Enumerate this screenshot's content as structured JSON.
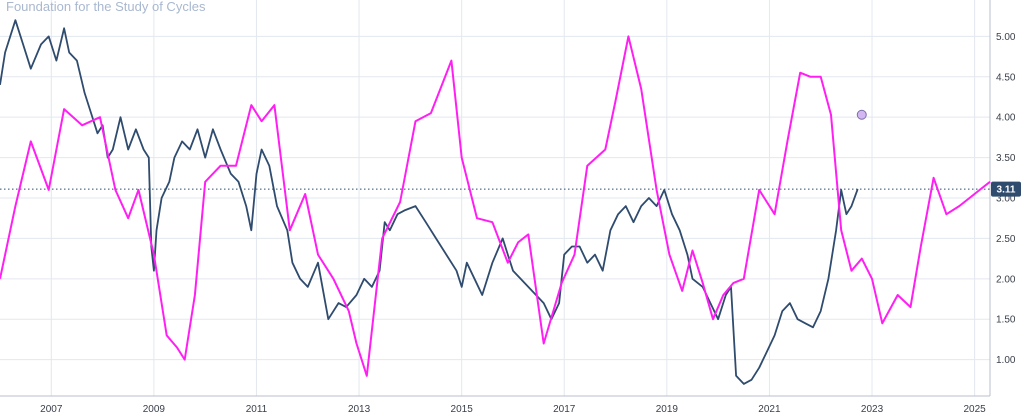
{
  "watermark": "Foundation for the Study of Cycles",
  "colors": {
    "price": "#2f4b6e",
    "cycle": "#ff1ff2",
    "grid": "#e3e8ef",
    "axis_text": "#3a3f4a",
    "tag_bg": "#2f4b6e",
    "last_line": "#2f4b6e",
    "marker_fill": "#d3b6f2",
    "marker_stroke": "#7a6fa8"
  },
  "chart_data": {
    "type": "line",
    "title": "",
    "xlabel": "",
    "ylabel": "",
    "xlim": [
      2006.0,
      2025.3
    ],
    "ylim": [
      0.55,
      5.45
    ],
    "grid": true,
    "y_axis_side": "right",
    "x_ticks": [
      "2007",
      "2009",
      "2011",
      "2013",
      "2015",
      "2017",
      "2019",
      "2021",
      "2023",
      "2025"
    ],
    "y_ticks": [
      "5.00",
      "4.50",
      "4.00",
      "3.50",
      "3.00",
      "2.50",
      "2.00",
      "1.50",
      "1.00"
    ],
    "last_value": 3.11,
    "last_value_label": "3.11",
    "projection_marker": {
      "x": 2022.8,
      "y": 4.03
    },
    "series": [
      {
        "key": "price",
        "x": [
          2006.0,
          2006.1,
          2006.3,
          2006.45,
          2006.6,
          2006.8,
          2006.95,
          2007.1,
          2007.25,
          2007.35,
          2007.5,
          2007.65,
          2007.75,
          2007.9,
          2008.0,
          2008.1,
          2008.2,
          2008.35,
          2008.5,
          2008.65,
          2008.8,
          2008.9,
          2008.95,
          2009.0,
          2009.05,
          2009.15,
          2009.3,
          2009.4,
          2009.55,
          2009.7,
          2009.85,
          2010.0,
          2010.15,
          2010.3,
          2010.5,
          2010.65,
          2010.8,
          2010.9,
          2011.0,
          2011.1,
          2011.25,
          2011.4,
          2011.6,
          2011.7,
          2011.85,
          2012.0,
          2012.2,
          2012.4,
          2012.6,
          2012.75,
          2012.95,
          2013.1,
          2013.25,
          2013.4,
          2013.5,
          2013.6,
          2013.75,
          2013.9,
          2014.1,
          2014.3,
          2014.5,
          2014.7,
          2014.9,
          2015.0,
          2015.1,
          2015.25,
          2015.4,
          2015.6,
          2015.8,
          2015.9,
          2016.0,
          2016.15,
          2016.3,
          2016.45,
          2016.6,
          2016.75,
          2016.9,
          2017.0,
          2017.15,
          2017.3,
          2017.45,
          2017.6,
          2017.75,
          2017.9,
          2018.05,
          2018.2,
          2018.35,
          2018.5,
          2018.65,
          2018.8,
          2018.95,
          2019.1,
          2019.25,
          2019.4,
          2019.5,
          2019.7,
          2019.85,
          2020.0,
          2020.15,
          2020.25,
          2020.35,
          2020.5,
          2020.65,
          2020.8,
          2020.95,
          2021.1,
          2021.25,
          2021.4,
          2021.55,
          2021.7,
          2021.85,
          2022.0,
          2022.15,
          2022.3,
          2022.4,
          2022.5,
          2022.6,
          2022.72
        ],
        "values": [
          4.4,
          4.8,
          5.2,
          4.9,
          4.6,
          4.9,
          5.0,
          4.7,
          5.1,
          4.8,
          4.7,
          4.3,
          4.1,
          3.8,
          3.9,
          3.5,
          3.6,
          4.0,
          3.6,
          3.85,
          3.6,
          3.5,
          2.4,
          2.1,
          2.6,
          3.0,
          3.2,
          3.5,
          3.7,
          3.6,
          3.85,
          3.5,
          3.85,
          3.6,
          3.3,
          3.2,
          2.9,
          2.6,
          3.3,
          3.6,
          3.4,
          2.9,
          2.6,
          2.2,
          2.0,
          1.9,
          2.2,
          1.5,
          1.7,
          1.65,
          1.8,
          2.0,
          1.9,
          2.1,
          2.7,
          2.6,
          2.8,
          2.85,
          2.9,
          2.7,
          2.5,
          2.3,
          2.1,
          1.9,
          2.2,
          2.0,
          1.8,
          2.2,
          2.5,
          2.3,
          2.1,
          2.0,
          1.9,
          1.8,
          1.7,
          1.5,
          1.7,
          2.3,
          2.4,
          2.4,
          2.2,
          2.3,
          2.1,
          2.6,
          2.8,
          2.9,
          2.7,
          2.9,
          3.0,
          2.9,
          3.1,
          2.8,
          2.6,
          2.3,
          2.0,
          1.9,
          1.7,
          1.5,
          1.8,
          1.9,
          0.8,
          0.7,
          0.75,
          0.9,
          1.1,
          1.3,
          1.6,
          1.7,
          1.5,
          1.45,
          1.4,
          1.6,
          2.0,
          2.6,
          3.1,
          2.8,
          2.9,
          3.11
        ]
      },
      {
        "key": "cycle",
        "x": [
          2006.0,
          2006.3,
          2006.6,
          2006.95,
          2007.25,
          2007.6,
          2007.95,
          2008.25,
          2008.5,
          2008.7,
          2009.0,
          2009.25,
          2009.45,
          2009.6,
          2009.8,
          2010.0,
          2010.3,
          2010.6,
          2010.9,
          2011.1,
          2011.35,
          2011.65,
          2011.95,
          2012.2,
          2012.5,
          2012.8,
          2012.95,
          2013.15,
          2013.45,
          2013.8,
          2014.1,
          2014.4,
          2014.8,
          2015.0,
          2015.3,
          2015.6,
          2015.9,
          2016.1,
          2016.3,
          2016.6,
          2016.95,
          2017.2,
          2017.45,
          2017.8,
          2018.0,
          2018.25,
          2018.5,
          2018.8,
          2019.05,
          2019.3,
          2019.5,
          2019.7,
          2019.9,
          2020.1,
          2020.3,
          2020.5,
          2020.8,
          2021.1,
          2021.35,
          2021.6,
          2021.8,
          2022.0,
          2022.2,
          2022.4,
          2022.6,
          2022.8,
          2023.0,
          2023.2,
          2023.5,
          2023.75,
          2023.95,
          2024.2,
          2024.45,
          2024.7,
          2024.9,
          2025.1,
          2025.3
        ],
        "values": [
          2.0,
          2.9,
          3.7,
          3.1,
          4.1,
          3.9,
          4.0,
          3.1,
          2.75,
          3.1,
          2.3,
          1.3,
          1.15,
          1.0,
          1.8,
          3.2,
          3.4,
          3.4,
          4.15,
          3.95,
          4.15,
          2.6,
          3.05,
          2.3,
          2.0,
          1.6,
          1.2,
          0.8,
          2.5,
          2.95,
          3.95,
          4.05,
          4.7,
          3.5,
          2.75,
          2.7,
          2.2,
          2.45,
          2.55,
          1.2,
          1.95,
          2.3,
          3.4,
          3.6,
          4.2,
          5.0,
          4.35,
          3.1,
          2.3,
          1.85,
          2.35,
          1.95,
          1.5,
          1.8,
          1.95,
          2.0,
          3.1,
          2.8,
          3.7,
          4.55,
          4.5,
          4.5,
          4.03,
          2.6,
          2.1,
          2.25,
          2.0,
          1.45,
          1.8,
          1.65,
          2.4,
          3.25,
          2.8,
          2.9,
          3.0,
          3.1,
          3.2
        ]
      }
    ]
  }
}
